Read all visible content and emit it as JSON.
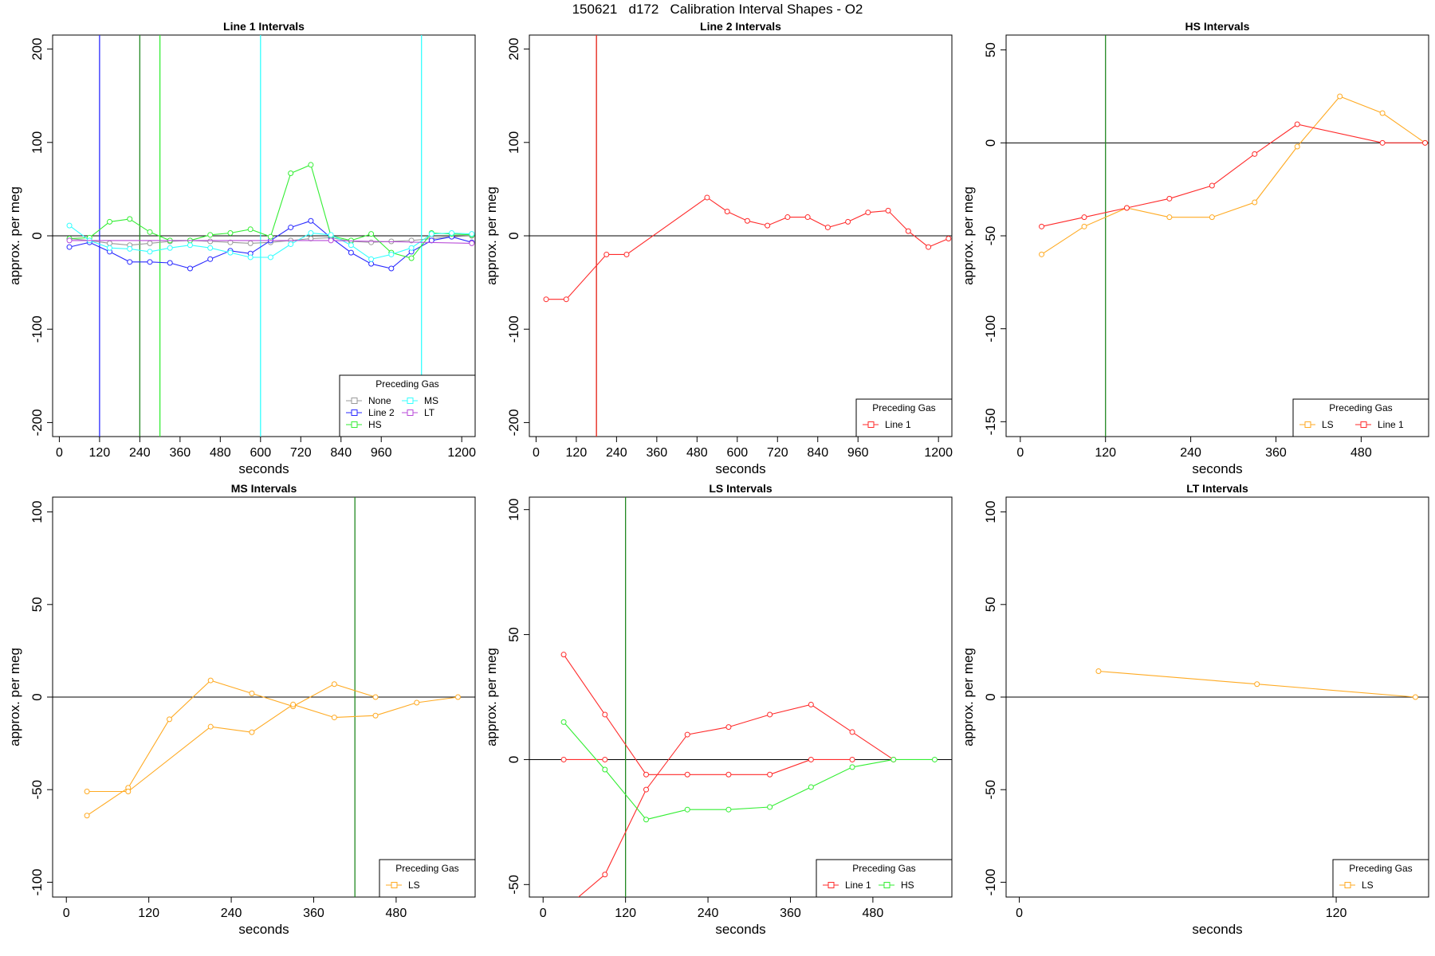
{
  "figure": {
    "title": "150621   d172   Calibration Interval Shapes - O2"
  },
  "colors": {
    "None": "#999999",
    "Line 1": "#ff2a2a",
    "Line 2": "#2a2aff",
    "HS": "#33ee33",
    "MS": "#33ffff",
    "LS": "#ffaa22",
    "LT": "#b84ad8",
    "vline_green": "#228822",
    "zero_line": "#000000"
  },
  "chart_data": [
    {
      "type": "line",
      "title": "Line 1 Intervals",
      "xlabel": "seconds",
      "ylabel": "approx. per meg",
      "xlim": [
        -20,
        1240
      ],
      "ylim": [
        -215,
        215
      ],
      "xticks": [
        0,
        120,
        240,
        360,
        480,
        600,
        720,
        840,
        960,
        1200
      ],
      "yticks": [
        -200,
        -100,
        0,
        100,
        200
      ],
      "grid": false,
      "zero_line": true,
      "legend": {
        "title": "Preceding Gas",
        "placement": "bottom-right",
        "columns": 2,
        "entries": [
          {
            "label": "None",
            "color": "None"
          },
          {
            "label": "MS",
            "color": "MS"
          },
          {
            "label": "Line 2",
            "color": "Line 2"
          },
          {
            "label": "LT",
            "color": "LT"
          },
          {
            "label": "HS",
            "color": "HS"
          }
        ]
      },
      "vlines": [
        {
          "x": 120,
          "color": "Line 2"
        },
        {
          "x": 240,
          "color": "vline_green"
        },
        {
          "x": 300,
          "color": "HS"
        },
        {
          "x": 600,
          "color": "MS"
        },
        {
          "x": 1080,
          "color": "MS"
        }
      ],
      "series": [
        {
          "color": "None",
          "x": [
            30,
            90,
            150,
            210,
            270,
            330,
            390,
            450,
            510,
            570,
            630,
            690,
            750,
            810,
            870,
            930,
            990,
            1050,
            1110,
            1170,
            1230
          ],
          "y": [
            -3,
            -5,
            -8,
            -10,
            -8,
            -6,
            -5,
            -6,
            -7,
            -8,
            -7,
            -5,
            -3,
            -2,
            -6,
            -7,
            -6,
            -5,
            -3,
            -1,
            0
          ]
        },
        {
          "color": "Line 2",
          "x": [
            30,
            90,
            150,
            210,
            270,
            330,
            390,
            450,
            510,
            570,
            630,
            690,
            750,
            810,
            870,
            930,
            990,
            1050,
            1110,
            1170,
            1230
          ],
          "y": [
            -12,
            -7,
            -17,
            -28,
            -28,
            -29,
            -35,
            -25,
            -16,
            -19,
            -5,
            9,
            16,
            -2,
            -18,
            -30,
            -35,
            -17,
            -5,
            -1,
            -7
          ]
        },
        {
          "color": "HS",
          "x": [
            30,
            90,
            150,
            210,
            270,
            330,
            390,
            450,
            510,
            570,
            630,
            690,
            750,
            810,
            870,
            930,
            990,
            1050,
            1110,
            1170,
            1230
          ],
          "y": [
            -3,
            -2,
            15,
            18,
            4,
            -5,
            -5,
            1,
            3,
            7,
            -1,
            67,
            76,
            0,
            -5,
            2,
            -18,
            -24,
            3,
            2,
            1
          ]
        },
        {
          "color": "MS",
          "x": [
            30,
            90,
            150,
            210,
            270,
            330,
            390,
            450,
            510,
            570,
            630,
            690,
            750,
            810,
            870,
            930,
            990,
            1050,
            1110,
            1170,
            1230
          ],
          "y": [
            11,
            -5,
            -13,
            -14,
            -17,
            -13,
            -10,
            -13,
            -18,
            -23,
            -23,
            -9,
            3,
            1,
            -10,
            -25,
            -20,
            -13,
            2,
            3,
            2
          ]
        },
        {
          "color": "LT",
          "x": [
            30,
            810,
            1230
          ],
          "y": [
            -5,
            -5,
            -8
          ]
        }
      ]
    },
    {
      "type": "line",
      "title": "Line 2 Intervals",
      "xlabel": "seconds",
      "ylabel": "approx. per meg",
      "xlim": [
        -20,
        1240
      ],
      "ylim": [
        -215,
        215
      ],
      "xticks": [
        0,
        120,
        240,
        360,
        480,
        600,
        720,
        840,
        960,
        1200
      ],
      "yticks": [
        -200,
        -100,
        0,
        100,
        200
      ],
      "grid": false,
      "zero_line": true,
      "legend": {
        "title": "Preceding Gas",
        "placement": "bottom-right",
        "columns": 1,
        "entries": [
          {
            "label": "Line 1",
            "color": "Line 1"
          }
        ]
      },
      "vlines": [
        {
          "x": 180,
          "color": "vline_green"
        },
        {
          "x": 180,
          "color": "Line 1"
        }
      ],
      "series": [
        {
          "color": "Line 1",
          "x": [
            30,
            90,
            210,
            270,
            510,
            570,
            630,
            690,
            750,
            810,
            870,
            930,
            990,
            1050,
            1110,
            1170,
            1230
          ],
          "y": [
            -68,
            -68,
            -20,
            -20,
            41,
            26,
            16,
            11,
            20,
            20,
            9,
            15,
            25,
            27,
            5,
            -12,
            -3
          ]
        }
      ]
    },
    {
      "type": "line",
      "title": "HS Intervals",
      "xlabel": "seconds",
      "ylabel": "approx. per meg",
      "xlim": [
        -20,
        575
      ],
      "ylim": [
        -158,
        58
      ],
      "xticks": [
        0,
        120,
        240,
        360,
        480
      ],
      "yticks": [
        -150,
        -100,
        -50,
        0,
        50
      ],
      "grid": false,
      "zero_line": true,
      "legend": {
        "title": "Preceding Gas",
        "placement": "bottom-right",
        "columns": 2,
        "entries": [
          {
            "label": "LS",
            "color": "LS"
          },
          {
            "label": "Line 1",
            "color": "Line 1"
          }
        ]
      },
      "vlines": [
        {
          "x": 120,
          "color": "vline_green"
        }
      ],
      "series": [
        {
          "color": "LS",
          "x": [
            30,
            90,
            150,
            210,
            270,
            330,
            390,
            450,
            510,
            570
          ],
          "y": [
            -60,
            -45,
            -35,
            -40,
            -40,
            -32,
            -2,
            25,
            16,
            0
          ]
        },
        {
          "color": "Line 1",
          "x": [
            30,
            90,
            150,
            210,
            270,
            330,
            390,
            510,
            570
          ],
          "y": [
            -45,
            -40,
            -35,
            -30,
            -23,
            -6,
            10,
            0,
            0
          ]
        }
      ]
    },
    {
      "type": "line",
      "title": "MS Intervals",
      "xlabel": "seconds",
      "ylabel": "approx. per meg",
      "xlim": [
        -20,
        595
      ],
      "ylim": [
        -108,
        108
      ],
      "xticks": [
        0,
        120,
        240,
        360,
        480
      ],
      "yticks": [
        -100,
        -50,
        0,
        50,
        100
      ],
      "grid": false,
      "zero_line": true,
      "legend": {
        "title": "Preceding Gas",
        "placement": "bottom-right",
        "columns": 1,
        "entries": [
          {
            "label": "LS",
            "color": "LS"
          }
        ]
      },
      "vlines": [
        {
          "x": 420,
          "color": "vline_green"
        }
      ],
      "series": [
        {
          "color": "LS",
          "x": [
            30,
            90,
            150,
            210,
            270,
            330,
            390,
            450
          ],
          "y": [
            -64,
            -49,
            -12,
            9,
            2,
            -5,
            7,
            0
          ]
        },
        {
          "color": "LS",
          "x": [
            30,
            90,
            210,
            270,
            330,
            390,
            450,
            510,
            570
          ],
          "y": [
            -51,
            -51,
            -16,
            -19,
            -4,
            -11,
            -10,
            -3,
            0
          ]
        }
      ]
    },
    {
      "type": "line",
      "title": "LS Intervals",
      "xlabel": "seconds",
      "ylabel": "approx. per meg",
      "xlim": [
        -20,
        595
      ],
      "ylim": [
        -55,
        105
      ],
      "xticks": [
        0,
        120,
        240,
        360,
        480
      ],
      "yticks": [
        -50,
        0,
        50,
        100
      ],
      "grid": false,
      "zero_line": true,
      "legend": {
        "title": "Preceding Gas",
        "placement": "bottom-right",
        "columns": 2,
        "entries": [
          {
            "label": "Line 1",
            "color": "Line 1"
          },
          {
            "label": "HS",
            "color": "HS"
          }
        ]
      },
      "vlines": [
        {
          "x": 120,
          "color": "vline_green"
        }
      ],
      "series": [
        {
          "color": "Line 1",
          "x": [
            30,
            90,
            150,
            210,
            270,
            330,
            390,
            450
          ],
          "y": [
            42,
            18,
            -6,
            -6,
            -6,
            -6,
            0,
            0
          ]
        },
        {
          "color": "Line 1",
          "x": [
            -10,
            30,
            90,
            150,
            210,
            270,
            330,
            390,
            450,
            510
          ],
          "y": [
            -70,
            -60,
            -46,
            -12,
            10,
            13,
            18,
            22,
            11,
            0
          ]
        },
        {
          "color": "Line 1",
          "x": [
            30,
            90
          ],
          "y": [
            0,
            0
          ]
        },
        {
          "color": "HS",
          "x": [
            30,
            90,
            150,
            210,
            270,
            330,
            390,
            450,
            510,
            570
          ],
          "y": [
            15,
            -4,
            -24,
            -20,
            -20,
            -19,
            -11,
            -3,
            0,
            0
          ]
        }
      ]
    },
    {
      "type": "line",
      "title": "LT Intervals",
      "xlabel": "seconds",
      "ylabel": "approx. per meg",
      "xlim": [
        -5,
        155
      ],
      "ylim": [
        -108,
        108
      ],
      "xticks": [
        0,
        120
      ],
      "yticks": [
        -100,
        -50,
        0,
        50,
        100
      ],
      "grid": false,
      "zero_line": true,
      "legend": {
        "title": "Preceding Gas",
        "placement": "bottom-right",
        "columns": 1,
        "entries": [
          {
            "label": "LS",
            "color": "LS"
          }
        ]
      },
      "vlines": [],
      "series": [
        {
          "color": "LS",
          "x": [
            30,
            90,
            150
          ],
          "y": [
            14,
            7,
            0
          ]
        }
      ]
    }
  ]
}
